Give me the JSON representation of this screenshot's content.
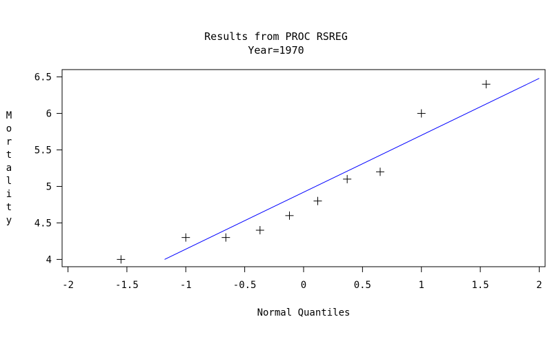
{
  "chart_data": {
    "type": "scatter",
    "title": "Results from PROC RSREG",
    "subtitle": "Year=1970",
    "xlabel": "Normal Quantiles",
    "ylabel": "Mortality",
    "xlim": [
      -2.05,
      2.05
    ],
    "ylim": [
      3.9,
      6.6
    ],
    "xticks": [
      "-2",
      "-1.5",
      "-1",
      "-0.5",
      "0",
      "0.5",
      "1",
      "1.5",
      "2"
    ],
    "yticks": [
      "4",
      "4.5",
      "5",
      "5.5",
      "6",
      "6.5"
    ],
    "grid": false,
    "legend": "none",
    "series": [
      {
        "marker": "plus",
        "color": "#000000",
        "points": [
          {
            "x": -1.55,
            "y": 4.0
          },
          {
            "x": -1.0,
            "y": 4.3
          },
          {
            "x": -0.66,
            "y": 4.3
          },
          {
            "x": -0.37,
            "y": 4.4
          },
          {
            "x": -0.12,
            "y": 4.6
          },
          {
            "x": 0.12,
            "y": 4.8
          },
          {
            "x": 0.37,
            "y": 5.1
          },
          {
            "x": 0.65,
            "y": 5.2
          },
          {
            "x": 1.0,
            "y": 6.0
          },
          {
            "x": 1.55,
            "y": 6.4
          }
        ]
      }
    ],
    "reference_line": {
      "color": "#0000ff",
      "from": {
        "x": -1.18,
        "y": 4.0
      },
      "to": {
        "x": 2.0,
        "y": 6.48
      }
    }
  }
}
